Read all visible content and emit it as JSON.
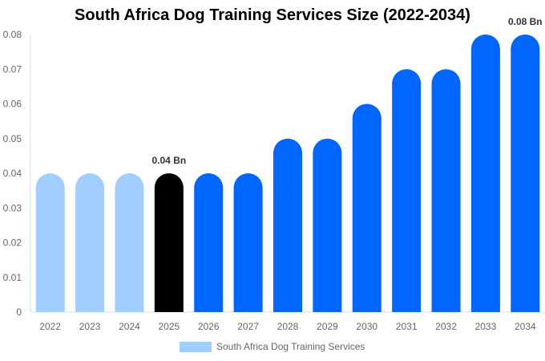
{
  "chart_data": {
    "type": "bar",
    "title": "South Africa Dog Training Services Size (2022-2034)",
    "categories": [
      "2022",
      "2023",
      "2024",
      "2025",
      "2026",
      "2027",
      "2028",
      "2029",
      "2030",
      "2031",
      "2032",
      "2033",
      "2034"
    ],
    "series": [
      {
        "name": "South Africa Dog Training Services",
        "values": [
          0.04,
          0.04,
          0.04,
          0.04,
          0.04,
          0.04,
          0.05,
          0.05,
          0.06,
          0.07,
          0.07,
          0.08,
          0.08
        ]
      }
    ],
    "bar_colors": [
      "#a0cfff",
      "#a0cfff",
      "#a0cfff",
      "#000000",
      "#0066ff",
      "#0066ff",
      "#0066ff",
      "#0066ff",
      "#0066ff",
      "#0066ff",
      "#0066ff",
      "#0066ff",
      "#0066ff"
    ],
    "legend_color": "#a0cfff",
    "yticks": [
      "0",
      "0.01",
      "0.02",
      "0.03",
      "0.04",
      "0.05",
      "0.06",
      "0.07",
      "0.08"
    ],
    "ylim": [
      0,
      0.08
    ],
    "data_labels": [
      {
        "category": "2025",
        "text": "0.04 Bn"
      },
      {
        "category": "2034",
        "text": "0.08 Bn"
      }
    ],
    "grid": false,
    "legend_position": "bottom"
  }
}
